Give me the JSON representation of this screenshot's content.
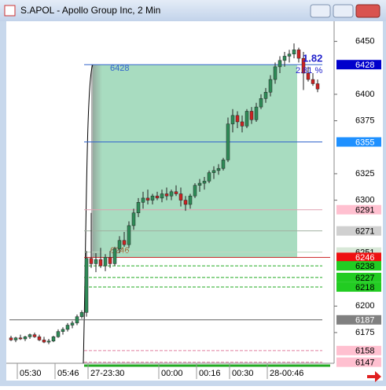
{
  "chart_data": {
    "type": "candlestick",
    "title": "S.APOL - Apollo Group Inc, 2 Min",
    "categories": [
      null,
      "05:30",
      null,
      null,
      null,
      null,
      null,
      null,
      null,
      "05:46",
      null,
      null,
      null,
      null,
      null,
      null,
      "27-23:30",
      null,
      null,
      null,
      null,
      null,
      null,
      null,
      null,
      null,
      null,
      null,
      null,
      null,
      null,
      "00:00",
      null,
      null,
      null,
      null,
      null,
      null,
      null,
      "00:16",
      null,
      null,
      null,
      null,
      null,
      null,
      "00:30",
      null,
      null,
      null,
      null,
      null,
      null,
      null,
      "28-00:46",
      null,
      null,
      null,
      null,
      null,
      null,
      null,
      null,
      null,
      null,
      null
    ],
    "open": [
      6170,
      6168,
      6170,
      6169,
      6171,
      6173,
      6171,
      6168,
      6166,
      6167,
      6171,
      6176,
      6178,
      6182,
      6184,
      6190,
      6194,
      6245,
      6240,
      6244,
      6238,
      6246,
      6240,
      6254,
      6262,
      6258,
      6276,
      6288,
      6298,
      6302,
      6300,
      6304,
      6302,
      6306,
      6304,
      6308,
      6306,
      6300,
      6296,
      6304,
      6314,
      6316,
      6318,
      6326,
      6328,
      6330,
      6338,
      6372,
      6380,
      6374,
      6370,
      6384,
      6376,
      6388,
      6396,
      6402,
      6414,
      6426,
      6432,
      6436,
      6438,
      6442,
      6434,
      6420,
      6414,
      6410
    ],
    "high": [
      6172,
      6171,
      6173,
      6172,
      6174,
      6175,
      6173,
      6171,
      6169,
      6172,
      6178,
      6180,
      6184,
      6186,
      6192,
      6196,
      6252,
      6288,
      6250,
      6255,
      6249,
      6252,
      6256,
      6266,
      6270,
      6280,
      6292,
      6302,
      6308,
      6310,
      6306,
      6308,
      6310,
      6312,
      6310,
      6314,
      6312,
      6304,
      6306,
      6316,
      6320,
      6322,
      6328,
      6332,
      6334,
      6340,
      6378,
      6386,
      6384,
      6380,
      6386,
      6388,
      6392,
      6400,
      6406,
      6418,
      6430,
      6436,
      6440,
      6442,
      6448,
      6444,
      6440,
      6426,
      6420,
      6414
    ],
    "low": [
      6167,
      6166,
      6168,
      6167,
      6169,
      6170,
      6167,
      6165,
      6164,
      6166,
      6170,
      6173,
      6176,
      6179,
      6182,
      6188,
      6190,
      6236,
      6232,
      6236,
      6233,
      6236,
      6238,
      6250,
      6256,
      6255,
      6272,
      6284,
      6292,
      6296,
      6296,
      6300,
      6298,
      6300,
      6300,
      6304,
      6294,
      6290,
      6292,
      6302,
      6308,
      6310,
      6316,
      6320,
      6324,
      6328,
      6336,
      6364,
      6368,
      6364,
      6368,
      6372,
      6374,
      6386,
      6392,
      6398,
      6410,
      6420,
      6426,
      6430,
      6434,
      6430,
      6404,
      6412,
      6408,
      6402
    ],
    "close": [
      6168,
      6170,
      6169,
      6171,
      6173,
      6171,
      6168,
      6166,
      6167,
      6171,
      6176,
      6178,
      6182,
      6184,
      6190,
      6194,
      6245,
      6240,
      6244,
      6238,
      6246,
      6240,
      6254,
      6262,
      6258,
      6276,
      6288,
      6298,
      6302,
      6300,
      6304,
      6302,
      6306,
      6304,
      6308,
      6306,
      6300,
      6296,
      6304,
      6314,
      6316,
      6318,
      6326,
      6328,
      6330,
      6338,
      6372,
      6380,
      6374,
      6370,
      6384,
      6376,
      6388,
      6396,
      6402,
      6414,
      6426,
      6432,
      6436,
      6438,
      6442,
      6434,
      6420,
      6414,
      6410,
      6405
    ],
    "up_color": "#2e8b57",
    "down_color": "#cc2222",
    "ylim": [
      6146,
      6469
    ],
    "yticks": [
      6450,
      6400,
      6375,
      6325,
      6300,
      6200,
      6175
    ],
    "box": {
      "top": 6428,
      "bottom": 6246,
      "color": "#a8dcc0"
    },
    "annotations": [
      "1.82",
      "2.81 %"
    ],
    "levels": [
      {
        "value": 6428,
        "color": "#3366cc",
        "tag_color": "#0000cc",
        "text_color": "#ffffff",
        "dashed": false,
        "full_width": false
      },
      {
        "value": 6355,
        "color": "#3366cc",
        "tag_color": "#1e90ff",
        "text_color": "#ffffff",
        "dashed": false,
        "full_width": false
      },
      {
        "value": 6291,
        "color": "#e0a0b0",
        "tag_color": "#ffc0d0",
        "text_color": "#000000",
        "dashed": false,
        "full_width": false
      },
      {
        "value": 6271,
        "color": "#a0b0a0",
        "tag_color": "#d0d0d0",
        "text_color": "#000000",
        "dashed": false,
        "full_width": false
      },
      {
        "value": 6251,
        "color": "#c0d8c0",
        "tag_color": "#d8e8d8",
        "text_color": "#000000",
        "dashed": false,
        "full_width": false
      },
      {
        "value": 6246,
        "color": "#cc2222",
        "tag_color": "#ee1111",
        "text_color": "#ffffff",
        "dashed": false,
        "full_width": false
      },
      {
        "value": 6238,
        "color": "#22aa22",
        "tag_color": "#22cc22",
        "text_color": "#000000",
        "dashed": true,
        "full_width": false
      },
      {
        "value": 6227,
        "color": "#22aa22",
        "tag_color": "#22cc22",
        "text_color": "#000000",
        "dashed": true,
        "full_width": false
      },
      {
        "value": 6218,
        "color": "#22aa22",
        "tag_color": "#22cc22",
        "text_color": "#000000",
        "dashed": true,
        "full_width": false
      },
      {
        "value": 6187,
        "color": "#606060",
        "tag_color": "#808080",
        "text_color": "#ffffff",
        "dashed": false,
        "full_width": true
      },
      {
        "value": 6158,
        "color": "#e080a0",
        "tag_color": "#ffc0d0",
        "text_color": "#000000",
        "dashed": true,
        "full_width": false
      },
      {
        "value": 6147,
        "color": "#e080a0",
        "tag_color": "#ffc0d0",
        "text_color": "#000000",
        "dashed": true,
        "full_width": false
      }
    ]
  }
}
